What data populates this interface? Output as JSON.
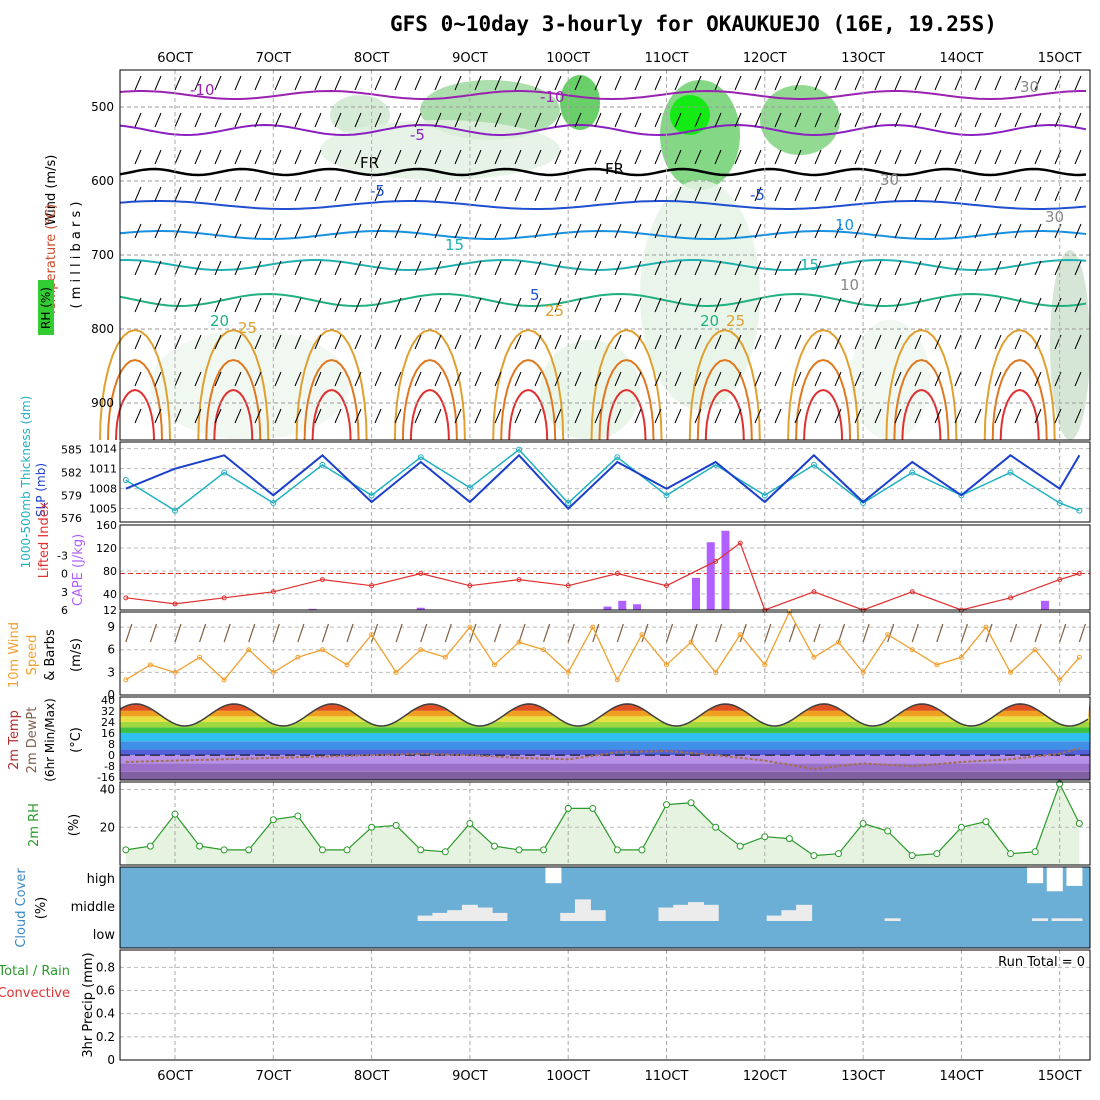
{
  "title": "GFS 0~10day 3-hourly for OKAUKUEJO (16E, 19.25S)",
  "x_axis": {
    "tick_labels": [
      "6OCT",
      "7OCT",
      "8OCT",
      "9OCT",
      "10OCT",
      "11OCT",
      "12OCT",
      "13OCT",
      "14OCT",
      "15OCT"
    ]
  },
  "panel_labels": {
    "upper": {
      "wind": "Wind (m/s)",
      "temperature": "Temperature (°C)",
      "pressure": "( m i l l i b a r s )",
      "rh": "RH (%)"
    },
    "slp": {
      "thickness": "1000-500mb Thickness (dm)",
      "slp": "SLP (mb)"
    },
    "li": {
      "lifted": "Lifted Index",
      "cape": "CAPE (J/kg)"
    },
    "wind10": {
      "line1": "10m Wind",
      "line2": "Speed",
      "line3": "& Barbs",
      "unit": "(m/s)"
    },
    "temp2m": {
      "line1": "2m Temp",
      "line2": "2m DewPt",
      "line3": "(6hr Min/Max)",
      "unit": "(°C)"
    },
    "rh2m": {
      "label": "2m RH",
      "unit": "(%)"
    },
    "cloud": {
      "label": "Cloud Cover",
      "unit": "(%)",
      "levels": [
        "high",
        "middle",
        "low"
      ]
    },
    "precip": {
      "line1": "Total / Rain",
      "line2": "Convective",
      "line3": "3hr Precip (mm)",
      "run_total": "Run Total = 0"
    }
  },
  "colors": {
    "slp": "#1a3fcc",
    "thickness": "#20b0c0",
    "lifted": "#e03030",
    "cape": "#b060ff",
    "wind10": "#f0a030",
    "barbs": "#806040",
    "rh2m": "#2a9a2a",
    "cloud_bg": "#6baed6",
    "rh_green": "#33cc33"
  },
  "chart_data": [
    {
      "type": "heatmap",
      "name": "upper-air cross section",
      "y_ticks": [
        500,
        600,
        700,
        800,
        900
      ],
      "ylim": [
        450,
        950
      ],
      "contour_labels": [
        "-10",
        "-10",
        "-5",
        "FR",
        "FR",
        "-5",
        "-5",
        "5",
        "10",
        "15",
        "15",
        "20",
        "25",
        "25",
        "20",
        "25",
        "30",
        "30",
        "30",
        "10"
      ]
    },
    {
      "type": "line",
      "name": "SLP and thickness",
      "x_days": [
        5.5,
        6.0,
        6.5,
        7.0,
        7.5,
        8.0,
        8.5,
        9.0,
        9.5,
        10.0,
        10.5,
        11.0,
        11.5,
        12.0,
        12.5,
        13.0,
        13.5,
        14.0,
        14.5,
        15.0,
        15.2
      ],
      "slp_ticks": [
        1005,
        1008,
        1011,
        1014
      ],
      "slp_ylim": [
        1003,
        1015
      ],
      "slp": [
        1008,
        1011,
        1013,
        1007,
        1013,
        1006,
        1012,
        1006,
        1013,
        1005,
        1012,
        1008,
        1012,
        1006,
        1013,
        1006,
        1012,
        1007,
        1013,
        1008,
        1013
      ],
      "thickness_ticks": [
        576,
        579,
        582,
        585
      ],
      "thickness_ylim": [
        575.5,
        586
      ],
      "thickness": [
        581,
        577,
        582,
        578,
        583,
        579,
        584,
        580,
        585,
        578,
        584,
        579,
        583,
        579,
        583,
        578,
        582,
        579,
        582,
        578,
        577
      ]
    },
    {
      "type": "bar",
      "name": "Lifted Index and CAPE",
      "li_ticks": [
        -3,
        0,
        3,
        6
      ],
      "li_tick_labels": [
        "-3",
        "0",
        "3",
        "6"
      ],
      "cape_ticks": [
        12,
        40,
        80,
        120,
        160
      ],
      "cape_ylim": [
        12,
        160
      ],
      "x_days": [
        5.5,
        6.0,
        6.5,
        7.0,
        7.5,
        8.0,
        8.5,
        9.0,
        9.5,
        10.0,
        10.5,
        11.0,
        11.5,
        11.75,
        12.0,
        12.5,
        13.0,
        13.5,
        14.0,
        14.5,
        15.0,
        15.2
      ],
      "lifted_index": [
        4,
        5,
        4,
        3,
        1,
        2,
        0,
        2,
        1,
        2,
        0,
        2,
        -2,
        -5,
        6,
        3,
        6,
        3,
        6,
        4,
        1,
        0
      ],
      "cape_x_days": [
        7.4,
        8.5,
        10.4,
        10.55,
        10.7,
        11.3,
        11.45,
        11.6,
        14.85
      ],
      "cape": [
        14,
        16,
        18,
        28,
        22,
        68,
        130,
        150,
        28
      ]
    },
    {
      "type": "line",
      "name": "10m Wind Speed",
      "y_ticks": [
        0,
        3,
        6,
        9
      ],
      "ylim": [
        0,
        11
      ],
      "x_days": [
        5.5,
        5.75,
        6.0,
        6.25,
        6.5,
        6.75,
        7.0,
        7.25,
        7.5,
        7.75,
        8.0,
        8.25,
        8.5,
        8.75,
        9.0,
        9.25,
        9.5,
        9.75,
        10.0,
        10.25,
        10.5,
        10.75,
        11.0,
        11.25,
        11.5,
        11.75,
        12.0,
        12.25,
        12.5,
        12.75,
        13.0,
        13.25,
        13.5,
        13.75,
        14.0,
        14.25,
        14.5,
        14.75,
        15.0,
        15.2
      ],
      "speed": [
        2,
        4,
        3,
        5,
        2,
        6,
        3,
        5,
        6,
        4,
        8,
        3,
        6,
        5,
        9,
        4,
        7,
        6,
        3,
        9,
        2,
        8,
        4,
        7,
        3,
        8,
        4,
        11,
        5,
        7,
        3,
        8,
        6,
        4,
        5,
        9,
        3,
        6,
        2,
        5
      ]
    },
    {
      "type": "area",
      "name": "2m Temp and DewPt",
      "y_ticks": [
        -16,
        -8,
        0,
        8,
        16,
        24,
        32,
        40
      ],
      "ylim": [
        -18,
        42
      ],
      "temp_min": 21,
      "temp_max": 37,
      "dewpt_x_days": [
        5.5,
        6.0,
        6.5,
        7.0,
        7.5,
        8.0,
        8.5,
        9.0,
        9.5,
        10.0,
        10.5,
        11.0,
        11.5,
        12.0,
        12.5,
        13.0,
        13.5,
        14.0,
        14.5,
        15.0,
        15.2
      ],
      "dewpt": [
        -5,
        -4,
        -3,
        -2,
        -1,
        0,
        1,
        0,
        -2,
        -3,
        2,
        3,
        0,
        -4,
        -10,
        -6,
        -8,
        -5,
        -3,
        1,
        5
      ]
    },
    {
      "type": "area",
      "name": "2m RH",
      "y_ticks": [
        20,
        40
      ],
      "ylim": [
        0,
        44
      ],
      "x_days": [
        5.5,
        5.75,
        6.0,
        6.25,
        6.5,
        6.75,
        7.0,
        7.25,
        7.5,
        7.75,
        8.0,
        8.25,
        8.5,
        8.75,
        9.0,
        9.25,
        9.5,
        9.75,
        10.0,
        10.25,
        10.5,
        10.75,
        11.0,
        11.25,
        11.5,
        11.75,
        12.0,
        12.25,
        12.5,
        12.75,
        13.0,
        13.25,
        13.5,
        13.75,
        14.0,
        14.25,
        14.5,
        14.75,
        15.0,
        15.2
      ],
      "rh": [
        8,
        10,
        27,
        10,
        8,
        8,
        24,
        26,
        8,
        8,
        20,
        21,
        8,
        7,
        22,
        10,
        8,
        8,
        30,
        30,
        8,
        8,
        32,
        33,
        20,
        10,
        15,
        14,
        5,
        6,
        22,
        18,
        5,
        6,
        20,
        23,
        6,
        7,
        43,
        22
      ]
    },
    {
      "type": "bar",
      "name": "Cloud Cover",
      "levels": [
        "high",
        "middle",
        "low"
      ],
      "middle_x_days": [
        8.55,
        8.7,
        8.85,
        9.0,
        9.15,
        9.3,
        10.0,
        10.15,
        10.3,
        11.0,
        11.15,
        11.3,
        11.45,
        12.1,
        12.25,
        12.4,
        13.3,
        14.8,
        15.0,
        15.15
      ],
      "middle_cover": [
        20,
        30,
        40,
        60,
        50,
        30,
        30,
        80,
        40,
        50,
        60,
        70,
        60,
        20,
        40,
        60,
        10,
        10,
        10,
        10
      ],
      "high_x_days": [
        9.85,
        14.75,
        14.95,
        15.15
      ],
      "high_cover": [
        60,
        60,
        90,
        70
      ]
    },
    {
      "type": "bar",
      "name": "3hr Precip",
      "y_ticks": [
        0,
        0.2,
        0.4,
        0.6,
        0.8
      ],
      "y_tick_labels": [
        "0",
        "0.2",
        "0.4",
        "0.6",
        "0.8"
      ],
      "ylim": [
        0,
        0.95
      ],
      "values": []
    }
  ]
}
